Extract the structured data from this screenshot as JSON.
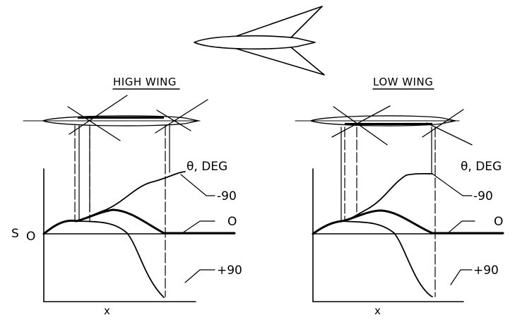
{
  "panels": {
    "high": {
      "title": "HIGH WING",
      "theta_label": "θ, DEG",
      "curve_labels": [
        "-90",
        "O",
        "+90"
      ],
      "y_label": "S",
      "origin_label": "O",
      "x_label": "x"
    },
    "low": {
      "title": "LOW WING",
      "theta_label": "θ, DEG",
      "curve_labels": [
        "-90",
        "O",
        "+90"
      ],
      "x_label": "x"
    }
  }
}
